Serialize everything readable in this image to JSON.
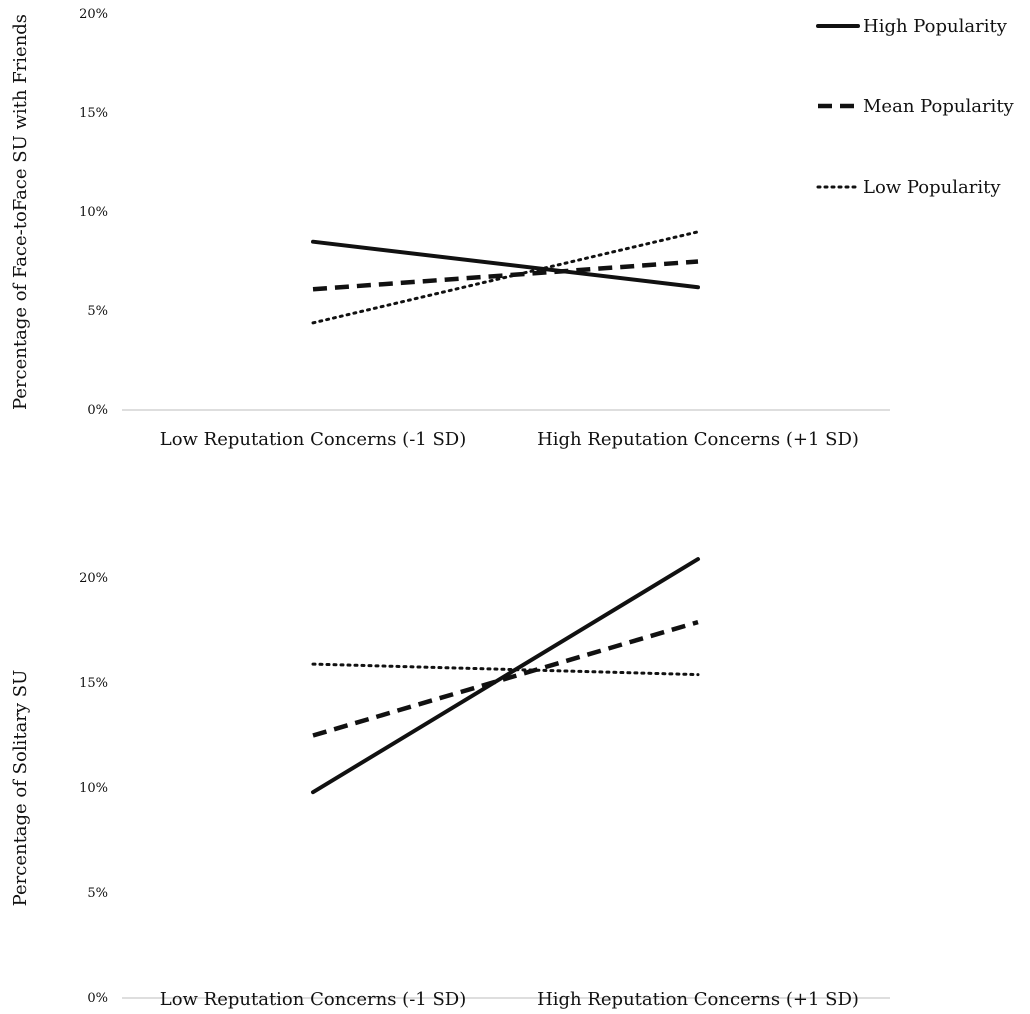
{
  "legend": {
    "placement": "top-right",
    "entries": [
      {
        "label": "High Popularity",
        "style": "solid"
      },
      {
        "label": "Mean Popularity",
        "style": "dashed"
      },
      {
        "label": "Low Popularity",
        "style": "dotted"
      }
    ]
  },
  "chart_data": [
    {
      "type": "line",
      "title": "",
      "xlabel": "",
      "ylabel": "Percentage of Face-toFace SU with Friends",
      "categories": [
        "Low Reputation Concerns (-1 SD)",
        "High Reputation Concerns (+1 SD)"
      ],
      "ylim": [
        0,
        20
      ],
      "yticks": [
        "0%",
        "5%",
        "10%",
        "15%",
        "20%"
      ],
      "grid": false,
      "series": [
        {
          "name": "High Popularity",
          "style": "solid",
          "values": [
            8.5,
            6.2
          ]
        },
        {
          "name": "Mean Popularity",
          "style": "dashed",
          "values": [
            6.1,
            7.5
          ]
        },
        {
          "name": "Low Popularity",
          "style": "dotted",
          "values": [
            4.4,
            9.0
          ]
        }
      ]
    },
    {
      "type": "line",
      "title": "",
      "xlabel": "",
      "ylabel": "Percentage of Solitary SU",
      "categories": [
        "Low Reputation Concerns (-1 SD)",
        "High Reputation Concerns (+1 SD)"
      ],
      "ylim": [
        0,
        20
      ],
      "yticks": [
        "0%",
        "5%",
        "10%",
        "15%",
        "20%"
      ],
      "grid": false,
      "series": [
        {
          "name": "High Popularity",
          "style": "solid",
          "values": [
            9.8,
            20.9
          ]
        },
        {
          "name": "Mean Popularity",
          "style": "dashed",
          "values": [
            12.5,
            17.9
          ]
        },
        {
          "name": "Low Popularity",
          "style": "dotted",
          "values": [
            15.9,
            15.4
          ]
        }
      ]
    }
  ]
}
